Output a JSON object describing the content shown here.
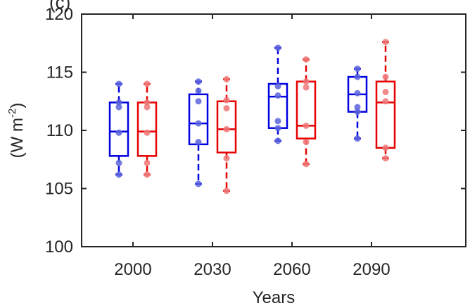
{
  "panel_label": "(c)",
  "chart_data": {
    "type": "box",
    "xlabel": "Years",
    "ylabel": "(W m",
    "ylabel_superscript": "-2",
    "ylabel_close": ")",
    "ylim": [
      100,
      120
    ],
    "yticks": [
      100,
      105,
      110,
      115,
      120
    ],
    "categories": [
      "2000",
      "2030",
      "2060",
      "2090"
    ],
    "grid": false,
    "colors": {
      "blue": "#0000e0",
      "red": "#e60000",
      "blue_point": "#5a64dc",
      "red_point": "#f07878",
      "axis": "#262626"
    },
    "series": [
      {
        "color_key": "blue",
        "boxes": [
          {
            "whisker_low": 106.2,
            "q1": 107.8,
            "median": 109.9,
            "q3": 112.4,
            "whisker_high": 114.0,
            "points": [
              106.2,
              107.2,
              109.8,
              112.0,
              112.4,
              114.0
            ]
          },
          {
            "whisker_low": 105.4,
            "q1": 108.8,
            "median": 110.6,
            "q3": 113.1,
            "whisker_high": 114.2,
            "points": [
              105.4,
              109.0,
              110.6,
              112.5,
              113.4,
              114.2
            ]
          },
          {
            "whisker_low": 109.1,
            "q1": 110.2,
            "median": 112.9,
            "q3": 114.0,
            "whisker_high": 117.1,
            "points": [
              109.1,
              110.2,
              110.8,
              113.0,
              113.8,
              117.1
            ]
          },
          {
            "whisker_low": 109.3,
            "q1": 111.6,
            "median": 113.1,
            "q3": 114.6,
            "whisker_high": 115.3,
            "points": [
              109.3,
              111.6,
              112.0,
              113.2,
              114.6,
              115.3
            ]
          }
        ]
      },
      {
        "color_key": "red",
        "boxes": [
          {
            "whisker_low": 106.2,
            "q1": 107.8,
            "median": 109.9,
            "q3": 112.4,
            "whisker_high": 114.0,
            "points": [
              106.2,
              107.2,
              109.8,
              112.0,
              112.4,
              114.0
            ]
          },
          {
            "whisker_low": 104.8,
            "q1": 108.1,
            "median": 110.1,
            "q3": 112.5,
            "whisker_high": 114.4,
            "points": [
              104.8,
              107.6,
              110.1,
              111.9,
              112.6,
              114.4
            ]
          },
          {
            "whisker_low": 107.1,
            "q1": 109.3,
            "median": 110.4,
            "q3": 114.2,
            "whisker_high": 116.1,
            "points": [
              107.1,
              109.0,
              110.4,
              113.7,
              114.2,
              116.1
            ]
          },
          {
            "whisker_low": 107.6,
            "q1": 108.5,
            "median": 112.4,
            "q3": 114.2,
            "whisker_high": 117.6,
            "points": [
              107.6,
              108.5,
              112.5,
              113.3,
              114.6,
              117.6
            ]
          }
        ]
      }
    ]
  }
}
